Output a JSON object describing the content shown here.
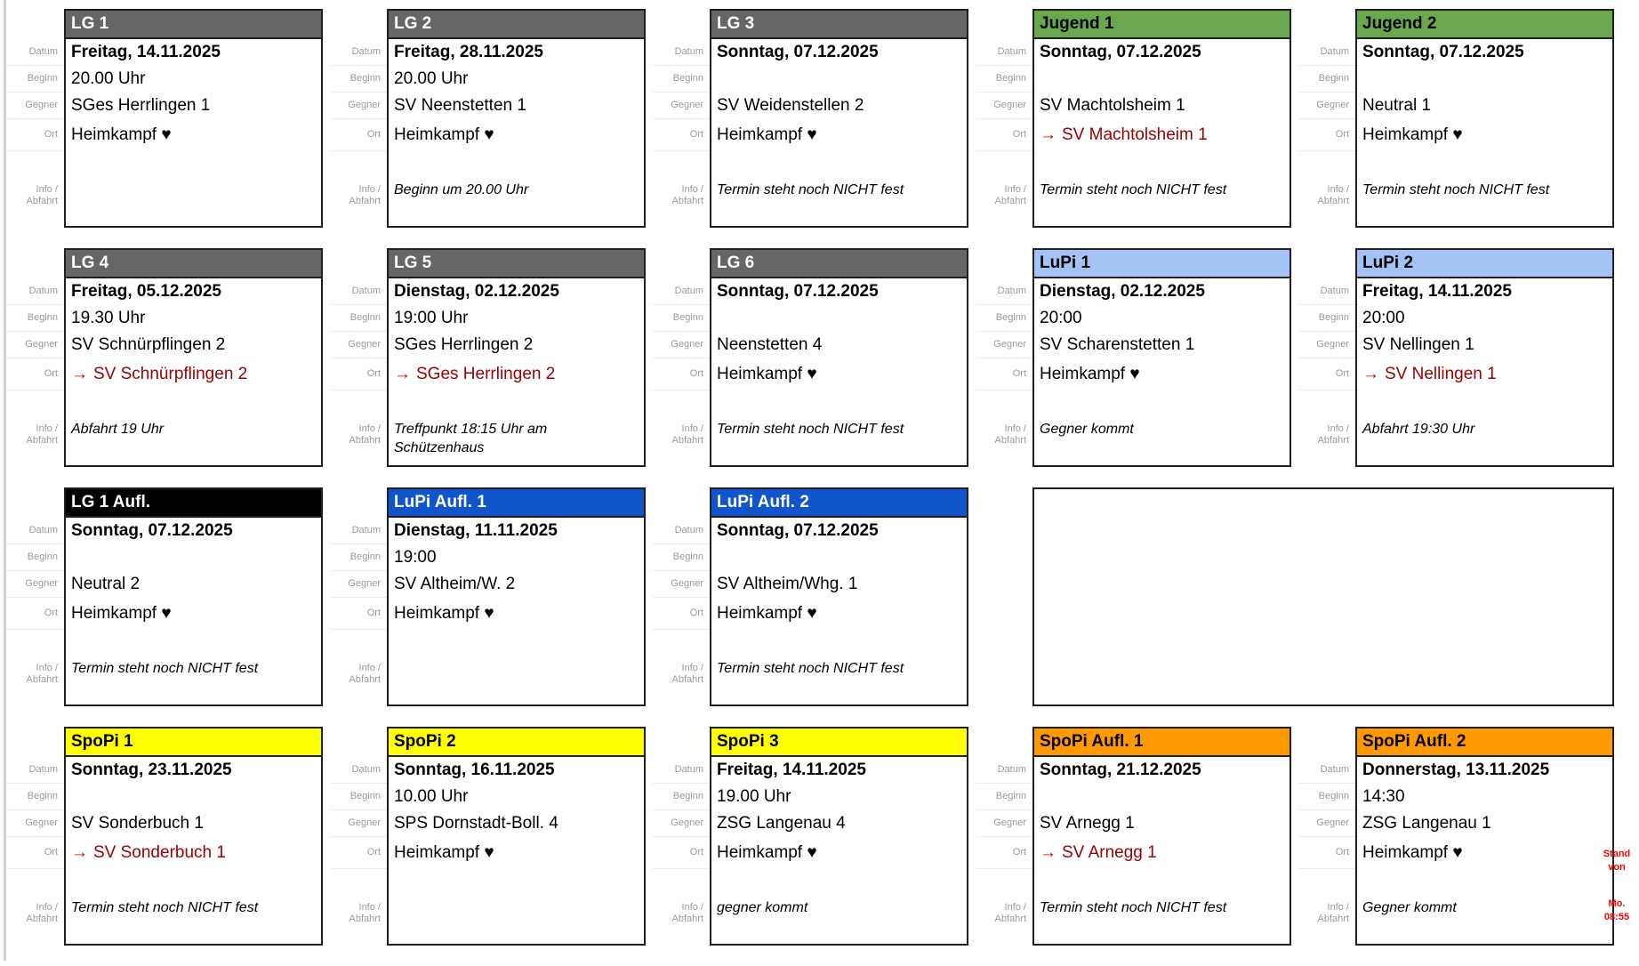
{
  "labels": {
    "datum": "Datum",
    "beginn": "Beginn",
    "gegner": "Gegner",
    "ort": "Ort",
    "info_line1": "Info /",
    "info_line2": "Abfahrt"
  },
  "colors": {
    "lg_header": "#666666",
    "jugend_header": "#6aa84f",
    "lupi_header": "#a4c2f4",
    "lg_aufl_header": "#000000",
    "lupi_aufl_header": "#1155cc",
    "spopi_header": "#ffff00",
    "spopi_aufl_header": "#ff9900",
    "away_text": "#990000",
    "stand_note": "#ff0000"
  },
  "cards": [
    {
      "title": "LG 1",
      "variant": "lg",
      "datum": "Freitag, 14.11.2025",
      "beginn": "20.00 Uhr",
      "gegner": "SGes Herrlingen 1",
      "ort_prefix": "",
      "ort_text": "Heimkampf ♥",
      "ort_away": "false",
      "info": ""
    },
    {
      "title": "LG 2",
      "variant": "lg",
      "datum": "Freitag, 28.11.2025",
      "beginn": "20.00 Uhr",
      "gegner": "SV Neenstetten 1",
      "ort_prefix": "",
      "ort_text": "Heimkampf ♥",
      "ort_away": "false",
      "info": "Beginn um 20.00 Uhr"
    },
    {
      "title": "LG 3",
      "variant": "lg",
      "datum": "Sonntag, 07.12.2025",
      "beginn": "",
      "gegner": "SV Weidenstellen 2",
      "ort_prefix": "",
      "ort_text": "Heimkampf ♥",
      "ort_away": "false",
      "info": "Termin steht noch NICHT fest"
    },
    {
      "title": "Jugend 1",
      "variant": "jugend",
      "datum": "Sonntag, 07.12.2025",
      "beginn": "",
      "gegner": "SV Machtolsheim 1",
      "ort_prefix": "→",
      "ort_text": "SV Machtolsheim 1",
      "ort_away": "true",
      "info": "Termin steht noch NICHT fest"
    },
    {
      "title": "Jugend 2",
      "variant": "jugend",
      "datum": "Sonntag, 07.12.2025",
      "beginn": "",
      "gegner": "Neutral 1",
      "ort_prefix": "",
      "ort_text": "Heimkampf ♥",
      "ort_away": "false",
      "info": "Termin steht noch NICHT fest"
    },
    {
      "title": "LG 4",
      "variant": "lg",
      "datum": "Freitag, 05.12.2025",
      "beginn": "19.30 Uhr",
      "gegner": "SV Schnürpflingen 2",
      "ort_prefix": "→",
      "ort_text": "SV Schnürpflingen 2",
      "ort_away": "true",
      "info": "Abfahrt 19 Uhr"
    },
    {
      "title": "LG 5",
      "variant": "lg",
      "datum": "Dienstag, 02.12.2025",
      "beginn": "19:00 Uhr",
      "gegner": "SGes Herrlingen 2",
      "ort_prefix": "→",
      "ort_text": "SGes Herrlingen 2",
      "ort_away": "true",
      "info": "Treffpunkt 18:15 Uhr am Schützenhaus"
    },
    {
      "title": "LG 6",
      "variant": "lg",
      "datum": "Sonntag, 07.12.2025",
      "beginn": "",
      "gegner": "Neenstetten 4",
      "ort_prefix": "",
      "ort_text": "Heimkampf ♥",
      "ort_away": "false",
      "info": "Termin steht noch NICHT fest"
    },
    {
      "title": "LuPi 1",
      "variant": "lupi",
      "datum": "Dienstag, 02.12.2025",
      "beginn": "20:00",
      "gegner": "SV Scharenstetten 1",
      "ort_prefix": "",
      "ort_text": "Heimkampf ♥",
      "ort_away": "false",
      "info": "Gegner kommt"
    },
    {
      "title": "LuPi 2",
      "variant": "lupi",
      "datum": "Freitag, 14.11.2025",
      "beginn": "20:00",
      "gegner": "SV Nellingen 1",
      "ort_prefix": "→",
      "ort_text": "SV Nellingen 1",
      "ort_away": "true",
      "info": "Abfahrt 19:30 Uhr"
    },
    {
      "title": "LG 1 Aufl.",
      "variant": "lg-aufl",
      "datum": "Sonntag, 07.12.2025",
      "beginn": "",
      "gegner": "Neutral 2",
      "ort_prefix": "",
      "ort_text": "Heimkampf ♥",
      "ort_away": "false",
      "info": "Termin steht noch NICHT fest"
    },
    {
      "title": "LuPi Aufl. 1",
      "variant": "lupi-aufl",
      "datum": "Dienstag, 11.11.2025",
      "beginn": "19:00",
      "gegner": "SV Altheim/W. 2",
      "ort_prefix": "",
      "ort_text": "Heimkampf ♥",
      "ort_away": "false",
      "info": ""
    },
    {
      "title": "LuPi Aufl. 2",
      "variant": "lupi-aufl",
      "datum": "Sonntag, 07.12.2025",
      "beginn": "",
      "gegner": "SV Altheim/Whg. 1",
      "ort_prefix": "",
      "ort_text": "Heimkampf ♥",
      "ort_away": "false",
      "info": "Termin steht noch NICHT fest"
    },
    {
      "title": "SpoPi 1",
      "variant": "spopi",
      "datum": "Sonntag, 23.11.2025",
      "beginn": "",
      "gegner": "SV Sonderbuch 1",
      "ort_prefix": "→",
      "ort_text": "SV Sonderbuch 1",
      "ort_away": "true",
      "info": "Termin steht noch NICHT fest"
    },
    {
      "title": "SpoPi 2",
      "variant": "spopi",
      "datum": "Sonntag, 16.11.2025",
      "beginn": "10.00 Uhr",
      "gegner": "SPS Dornstadt-Boll. 4",
      "ort_prefix": "",
      "ort_text": "Heimkampf ♥",
      "ort_away": "false",
      "info": ""
    },
    {
      "title": "SpoPi 3",
      "variant": "spopi",
      "datum": "Freitag, 14.11.2025",
      "beginn": "19.00 Uhr",
      "gegner": "ZSG Langenau 4",
      "ort_prefix": "",
      "ort_text": "Heimkampf ♥",
      "ort_away": "false",
      "info": "gegner kommt"
    },
    {
      "title": "SpoPi Aufl. 1",
      "variant": "spopi-aufl",
      "datum": "Sonntag, 21.12.2025",
      "beginn": "",
      "gegner": "SV Arnegg 1",
      "ort_prefix": "→",
      "ort_text": "SV Arnegg 1",
      "ort_away": "true",
      "info": "Termin steht noch NICHT fest"
    },
    {
      "title": "SpoPi Aufl. 2",
      "variant": "spopi-aufl",
      "datum": "Donnerstag, 13.11.2025",
      "beginn": "14:30",
      "gegner": "ZSG Langenau 1",
      "ort_prefix": "",
      "ort_text": "Heimkampf ♥",
      "ort_away": "false",
      "info": "Gegner kommt"
    }
  ],
  "stand_note": {
    "line1": "Stand von",
    "line2": "Mo. 08:55"
  }
}
